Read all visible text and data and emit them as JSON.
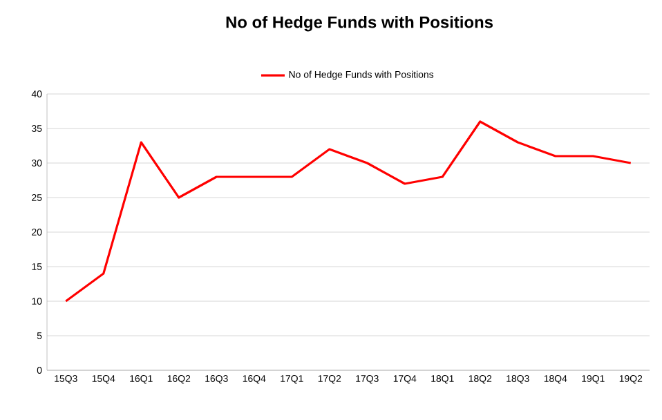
{
  "chart_data": {
    "type": "line",
    "title": "No of Hedge Funds with Positions",
    "categories": [
      "15Q3",
      "15Q4",
      "16Q1",
      "16Q2",
      "16Q3",
      "16Q4",
      "17Q1",
      "17Q2",
      "17Q3",
      "17Q4",
      "18Q1",
      "18Q2",
      "18Q3",
      "18Q4",
      "19Q1",
      "19Q2"
    ],
    "series": [
      {
        "name": "No of Hedge Funds with Positions",
        "color": "#ff0000",
        "values": [
          10,
          14,
          33,
          25,
          28,
          28,
          28,
          32,
          30,
          27,
          28,
          36,
          33,
          31,
          31,
          30
        ]
      }
    ],
    "ylim": [
      0,
      40
    ],
    "yticks": [
      0,
      5,
      10,
      15,
      20,
      25,
      30,
      35,
      40
    ],
    "grid": "y",
    "legend": "top",
    "marker": "none",
    "line_style": "solid"
  }
}
